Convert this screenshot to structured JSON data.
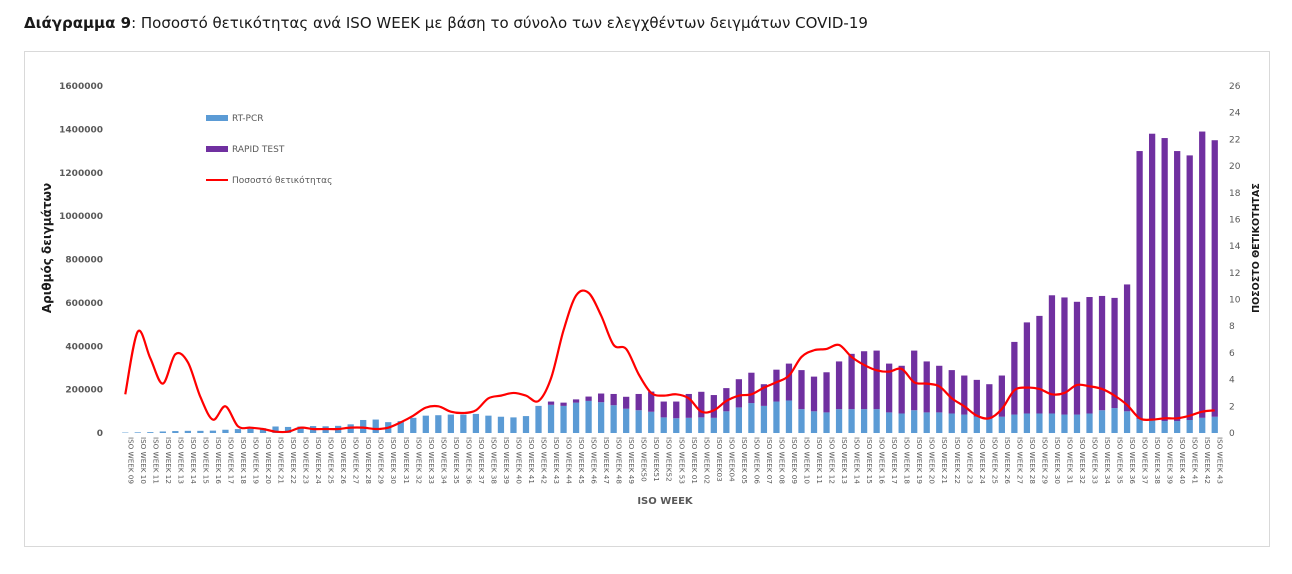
{
  "caption": {
    "lead": "Διάγραμμα 9",
    "rest": ": Ποσοστό θετικότητας ανά ISO WEEK με βάση το σύνολο των ελεγχθέντων δειγμάτων COVID-19"
  },
  "chart_data": {
    "type": "bar",
    "stacked": true,
    "xlabel": "ISO WEEK",
    "ylabel": "Αριθμός δειγμάτων",
    "y2label": "ΠΟΣΟΣΤΟ ΘΕΤΙΚΟΤΗΤΑΣ",
    "ylim": [
      0,
      1600000
    ],
    "y2lim": [
      0,
      26
    ],
    "yticks": [
      0,
      200000,
      400000,
      600000,
      800000,
      1000000,
      1200000,
      1400000,
      1600000
    ],
    "y2ticks": [
      0,
      2,
      4,
      6,
      8,
      10,
      12,
      14,
      16,
      18,
      20,
      22,
      24,
      26
    ],
    "legend_position": "top-left",
    "grid": false,
    "categories": [
      "ISO WEEK 09",
      "ISO WEEK 10",
      "ISO WEEK 11",
      "ISO WEEK 12",
      "ISO WEEK 13",
      "ISO WEEK 14",
      "ISO WEEK 15",
      "ISO WEEK 16",
      "ISO WEEK 17",
      "ISO WEEK 18",
      "ISO WEEK 19",
      "ISO WEEK 20",
      "ISO WEEK 21",
      "ISO WEEK 22",
      "ISO WEEK 23",
      "ISO WEEK 24",
      "ISO WEEK 25",
      "ISO WEEK 26",
      "ISO WEEK 27",
      "ISO WEEK 28",
      "ISO WEEK 29",
      "ISO WEEK 30",
      "ISO WEEK 31",
      "ISO WEEK 32",
      "ISO WEEK 33",
      "ISO WEEK 34",
      "ISO WEEK 35",
      "ISO WEEK 36",
      "ISO WEEK 37",
      "ISO WEEK 38",
      "ISO WEEK 39",
      "ISO WEEK 40",
      "ISO WEEK 41",
      "ISO WEEK 42",
      "ISO WEEK 43",
      "ISO WEEK 44",
      "ISO WEEK 45",
      "ISO WEEK 46",
      "ISO WEEK 47",
      "ISO WEEK 48",
      "ISO WEEK 49",
      "ISO WEEK50",
      "ISO WEEK51",
      "ISO WEEK52",
      "ISO WEEK 53",
      "ISO WEEK 01",
      "ISO WEEK 02",
      "ISO WEEK03",
      "ISO WEEK04",
      "ISO WEEK 05",
      "ISO WEEK 06",
      "ISO WEEK 07",
      "ISO WEEK 08",
      "ISO WEEK 09",
      "ISO WEEK 10",
      "ISO WEEK 11",
      "ISO WEEK 12",
      "ISO WEEK 13",
      "ISO WEEK 14",
      "ISO WEEK 15",
      "ISO WEEK 16",
      "ISO WEEK 17",
      "ISO WEEK 18",
      "ISO WEEK 19",
      "ISO WEEK 20",
      "ISO WEEK 21",
      "ISO WEEK 22",
      "ISO WEEK 23",
      "ISO WEEK 24",
      "ISO WEEK 25",
      "ISO WEEK 26",
      "ISO WEEK 27",
      "ISO WEEK 28",
      "ISO WEEK 29",
      "ISO WEEK 30",
      "ISO WEEK 31",
      "ISO WEEK 32",
      "ISO WEEK 33",
      "ISO WEEK 34",
      "ISO WEEK 35",
      "ISO WEEK 36",
      "ISO WEEK 37",
      "ISO WEEK 38",
      "ISO WEEK 39",
      "ISO WEEK 40",
      "ISO WEEK 41",
      "ISO WEEK 42",
      "ISO WEEK 43"
    ],
    "series": [
      {
        "name": "RT-PCR",
        "type": "bar",
        "axis": "left",
        "color": "#5b9bd5",
        "values": [
          2000,
          3000,
          4000,
          7000,
          9000,
          10000,
          10000,
          11000,
          15000,
          18000,
          20000,
          22000,
          30000,
          28000,
          30000,
          32000,
          31000,
          33000,
          40000,
          60000,
          62000,
          50000,
          55000,
          70000,
          80000,
          82000,
          85000,
          85000,
          88000,
          80000,
          75000,
          72000,
          78000,
          125000,
          130000,
          125000,
          140000,
          148000,
          142000,
          128000,
          112000,
          105000,
          98000,
          72000,
          68000,
          70000,
          72000,
          70000,
          100000,
          118000,
          138000,
          125000,
          145000,
          150000,
          110000,
          100000,
          95000,
          110000,
          110000,
          110000,
          110000,
          95000,
          90000,
          105000,
          95000,
          95000,
          90000,
          85000,
          75000,
          65000,
          75000,
          85000,
          90000,
          90000,
          90000,
          85000,
          85000,
          90000,
          105000,
          115000,
          100000,
          65000,
          60000,
          55000,
          55000,
          60000,
          70000,
          75000
        ]
      },
      {
        "name": "RAPID TEST",
        "type": "bar",
        "axis": "left",
        "color": "#7030a0",
        "values": [
          0,
          0,
          0,
          0,
          0,
          0,
          0,
          0,
          0,
          0,
          0,
          0,
          0,
          0,
          0,
          0,
          0,
          0,
          0,
          0,
          0,
          0,
          0,
          0,
          0,
          0,
          0,
          0,
          0,
          0,
          0,
          0,
          0,
          0,
          15000,
          15000,
          15000,
          20000,
          40000,
          52000,
          55000,
          75000,
          93000,
          73000,
          77000,
          110000,
          118000,
          105000,
          107000,
          130000,
          140000,
          100000,
          147000,
          170000,
          180000,
          160000,
          185000,
          220000,
          255000,
          267000,
          270000,
          225000,
          220000,
          275000,
          235000,
          215000,
          200000,
          180000,
          170000,
          160000,
          190000,
          335000,
          420000,
          450000,
          545000,
          540000,
          520000,
          537000,
          527000,
          508000,
          585000,
          1235000,
          1320000,
          1305000,
          1245000,
          1220000,
          1320000,
          1275000
        ]
      },
      {
        "name": "Ποσοστό θετικότητας",
        "type": "line",
        "axis": "right",
        "color": "#ff0000",
        "values": [
          2.9,
          7.6,
          5.6,
          3.7,
          5.9,
          5.3,
          2.7,
          1.0,
          2.0,
          0.5,
          0.4,
          0.3,
          0.1,
          0.1,
          0.4,
          0.3,
          0.3,
          0.3,
          0.4,
          0.4,
          0.3,
          0.4,
          0.8,
          1.3,
          1.9,
          2.0,
          1.6,
          1.5,
          1.7,
          2.6,
          2.8,
          3.0,
          2.8,
          2.4,
          4.1,
          7.7,
          10.3,
          10.5,
          8.8,
          6.6,
          6.3,
          4.4,
          3.0,
          2.8,
          2.9,
          2.6,
          1.6,
          1.7,
          2.4,
          2.8,
          2.9,
          3.4,
          3.8,
          4.3,
          5.7,
          6.2,
          6.3,
          6.6,
          5.7,
          5.1,
          4.7,
          4.6,
          4.8,
          3.8,
          3.7,
          3.5,
          2.6,
          2.0,
          1.3,
          1.1,
          1.8,
          3.2,
          3.4,
          3.3,
          2.9,
          3.0,
          3.6,
          3.5,
          3.3,
          2.8,
          2.1,
          1.1,
          1.0,
          1.1,
          1.1,
          1.3,
          1.6,
          1.7
        ]
      }
    ]
  }
}
